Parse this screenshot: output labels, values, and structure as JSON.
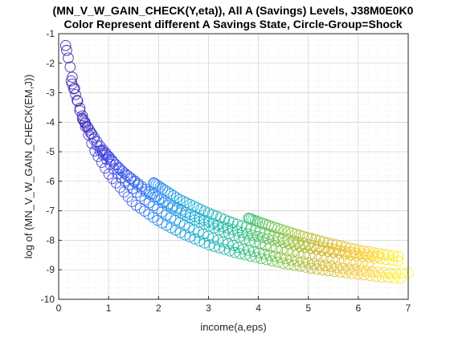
{
  "chart_data": {
    "type": "scatter",
    "title": "(MN_V_W_GAIN_CHECK(Y,eta)), All A (Savings) Levels, J38M0E0K0",
    "subtitle": "Color Represent different A Savings State, Circle-Group=Shock",
    "xlabel": "income(a,eps)",
    "ylabel": "log of (MN_V_W_GAIN_CHECK(EM,J))",
    "xlim": [
      0,
      7
    ],
    "ylim": [
      -10,
      -1
    ],
    "xticks": [
      "0",
      "1",
      "2",
      "3",
      "4",
      "5",
      "6",
      "7"
    ],
    "yticks": [
      "-10",
      "-9",
      "-8",
      "-7",
      "-6",
      "-5",
      "-4",
      "-3",
      "-2",
      "-1"
    ],
    "grid": true,
    "minor_grid": true,
    "box": true,
    "marker": "open-circle",
    "colormap": [
      "#3e26a8",
      "#4749e6",
      "#2e87f5",
      "#15b0cf",
      "#2dc08d",
      "#88c43e",
      "#d9b82a",
      "#fcd030",
      "#f9fb15"
    ],
    "x_shock_groups": [
      0.14,
      0.25,
      0.48,
      0.86,
      1.9,
      3.8
    ],
    "series": [
      {
        "x": [
          0.14,
          0.4,
          0.7,
          1.0,
          1.5,
          2.0,
          2.5,
          3.0,
          3.5,
          4.0,
          4.5,
          5.0,
          5.5,
          6.0,
          6.5,
          6.85
        ],
        "y": [
          -1.4,
          -3.5,
          -4.9,
          -5.75,
          -6.75,
          -7.35,
          -7.8,
          -8.15,
          -8.4,
          -8.6,
          -8.78,
          -8.93,
          -9.05,
          -9.15,
          -9.25,
          -9.3
        ]
      },
      {
        "x": [
          0.25,
          0.5,
          0.8,
          1.2,
          1.7,
          2.2,
          2.7,
          3.2,
          3.7,
          4.2,
          4.7,
          5.2,
          5.7,
          6.2,
          6.7,
          7.0
        ],
        "y": [
          -2.6,
          -3.9,
          -4.9,
          -5.8,
          -6.6,
          -7.2,
          -7.65,
          -8.0,
          -8.3,
          -8.5,
          -8.68,
          -8.83,
          -8.95,
          -9.05,
          -9.12,
          -9.1
        ]
      },
      {
        "x": [
          0.48,
          0.8,
          1.2,
          1.7,
          2.2,
          2.7,
          3.2,
          3.7,
          4.2,
          4.7,
          5.2,
          5.7,
          6.2
        ],
        "y": [
          -3.9,
          -4.75,
          -5.55,
          -6.3,
          -6.85,
          -7.3,
          -7.65,
          -7.95,
          -8.2,
          -8.4,
          -8.56,
          -8.7,
          -8.8
        ]
      },
      {
        "x": [
          0.86,
          1.3,
          1.8,
          2.3,
          2.8,
          3.3,
          3.8,
          4.3,
          4.8,
          5.3,
          5.8,
          6.3,
          6.8
        ],
        "y": [
          -4.95,
          -5.7,
          -6.35,
          -6.85,
          -7.25,
          -7.55,
          -7.8,
          -8.0,
          -8.2,
          -8.35,
          -8.48,
          -8.6,
          -8.7
        ]
      },
      {
        "x": [
          1.9,
          2.4,
          2.9,
          3.4,
          3.9,
          4.4,
          4.9,
          5.4,
          5.9,
          6.4
        ],
        "y": [
          -6.05,
          -6.6,
          -7.0,
          -7.35,
          -7.65,
          -7.9,
          -8.1,
          -8.28,
          -8.42,
          -8.55
        ]
      },
      {
        "x": [
          3.8,
          4.3,
          4.8,
          5.3,
          5.8,
          6.3,
          6.8
        ],
        "y": [
          -7.25,
          -7.55,
          -7.82,
          -8.05,
          -8.25,
          -8.42,
          -8.55
        ]
      }
    ]
  }
}
